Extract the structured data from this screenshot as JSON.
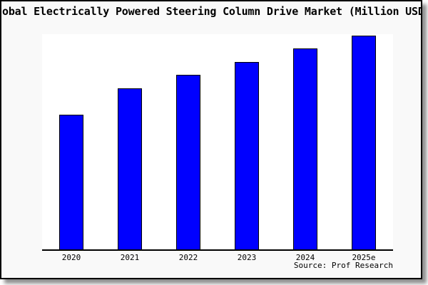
{
  "source": "Source: Prof Research",
  "chart_data": {
    "type": "bar",
    "title": "obal Electrically Powered Steering Column Drive Market (Million USD",
    "title_truncated": true,
    "categories": [
      "2020",
      "2021",
      "2022",
      "2023",
      "2024",
      "2025e"
    ],
    "values": [
      189,
      226,
      245,
      263,
      282,
      300
    ],
    "values_note": "no y-axis ticks or labels shown; values are bar heights in screen pixels relative to plot height 302",
    "xlabel": "",
    "ylabel": "",
    "ylim": [
      0,
      302
    ],
    "grid": false,
    "legend": false,
    "annotations": [
      "Source: Prof Research"
    ],
    "bar_color": "#0000ff",
    "bar_edge_color": "#000000",
    "figure_background": "#f9f9f9",
    "plot_background": "#ffffff",
    "axis_color": "#000000"
  }
}
